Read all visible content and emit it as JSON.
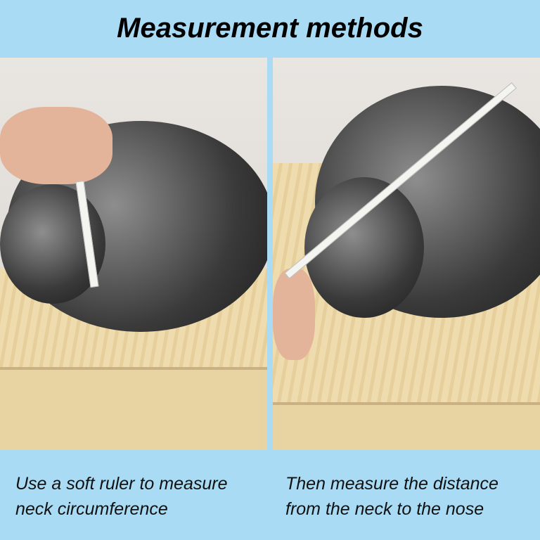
{
  "title": "Measurement methods",
  "panels": [
    {
      "caption_line1": "Use a soft ruler to measure",
      "caption_line2": "neck circumference"
    },
    {
      "caption_line1": "Then measure the distance",
      "caption_line2": "from the neck to the nose"
    }
  ],
  "colors": {
    "background": "#a9dcf4",
    "text": "#000000"
  }
}
